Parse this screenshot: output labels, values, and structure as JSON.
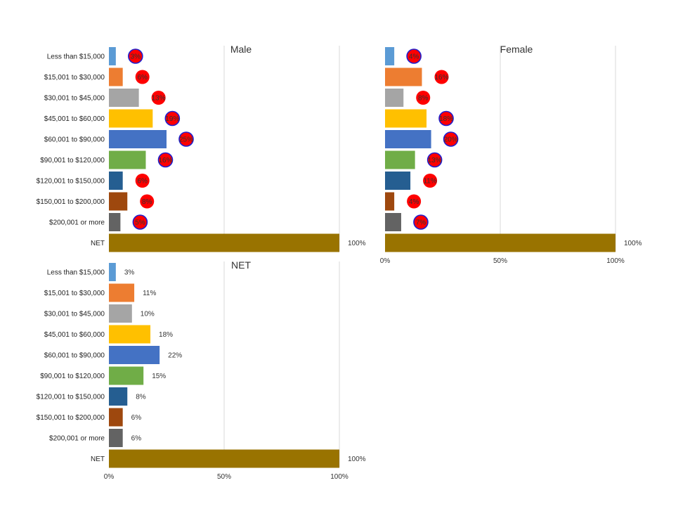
{
  "chart_data": [
    {
      "type": "bar",
      "title": "Male",
      "categories": [
        "Less than $15,000",
        "$15,001 to $30,000",
        "$30,001 to $45,000",
        "$45,001 to $60,000",
        "$60,001 to $90,000",
        "$90,001 to $120,000",
        "$120,001 to $150,000",
        "$150,001 to $200,000",
        "$200,001 or more",
        "NET"
      ],
      "values": [
        3,
        6,
        13,
        19,
        25,
        16,
        6,
        8,
        5,
        100
      ],
      "value_labels": [
        "3%",
        "6%",
        "13%",
        "19%",
        "25%",
        "16%",
        "6%",
        "8%",
        "5%",
        "100%"
      ],
      "marker_style": [
        "ring",
        "dot",
        "dot",
        "ring",
        "ring",
        "ring",
        "dot",
        "dot",
        "ring",
        "none"
      ],
      "xlim": [
        0,
        100
      ],
      "xticks": [
        "0%",
        "50%",
        "100%"
      ],
      "show_xticks": false,
      "grid": true
    },
    {
      "type": "bar",
      "title": "Female",
      "categories": [
        "Less than $15,000",
        "$15,001 to $30,000",
        "$30,001 to $45,000",
        "$45,001 to $60,000",
        "$60,001 to $90,000",
        "$90,001 to $120,000",
        "$120,001 to $150,000",
        "$150,001 to $200,000",
        "$200,001 or more",
        "NET"
      ],
      "values": [
        4,
        16,
        8,
        18,
        20,
        13,
        11,
        4,
        7,
        100
      ],
      "value_labels": [
        "4%",
        "16%",
        "8%",
        "18%",
        "20%",
        "13%",
        "11%",
        "4%",
        "7%",
        "100%"
      ],
      "marker_style": [
        "ring",
        "dot",
        "dot",
        "ring",
        "ring",
        "ring",
        "dot",
        "dot",
        "ring",
        "none"
      ],
      "xlim": [
        0,
        100
      ],
      "xticks": [
        "0%",
        "50%",
        "100%"
      ],
      "show_xticks": true,
      "show_category_labels": false,
      "grid": true
    },
    {
      "type": "bar",
      "title": "NET",
      "categories": [
        "Less than $15,000",
        "$15,001 to $30,000",
        "$30,001 to $45,000",
        "$45,001 to $60,000",
        "$60,001 to $90,000",
        "$90,001 to $120,000",
        "$120,001 to $150,000",
        "$150,001 to $200,000",
        "$200,001 or more",
        "NET"
      ],
      "values": [
        3,
        11,
        10,
        18,
        22,
        15,
        8,
        6,
        6,
        100
      ],
      "value_labels": [
        "3%",
        "11%",
        "10%",
        "18%",
        "22%",
        "15%",
        "8%",
        "6%",
        "6%",
        "100%"
      ],
      "marker_style": [
        "none",
        "none",
        "none",
        "none",
        "none",
        "none",
        "none",
        "none",
        "none",
        "none"
      ],
      "xlim": [
        0,
        100
      ],
      "xticks": [
        "0%",
        "50%",
        "100%"
      ],
      "show_xticks": true,
      "grid": true
    }
  ],
  "colors": {
    "bars": [
      "#5b9bd5",
      "#ed7d31",
      "#a5a5a5",
      "#ffc000",
      "#4472c4",
      "#70ad47",
      "#255e91",
      "#9e480e",
      "#636363",
      "#997300"
    ],
    "marker_fill": "#ff0000",
    "marker_ring": "#1f1fd0"
  }
}
